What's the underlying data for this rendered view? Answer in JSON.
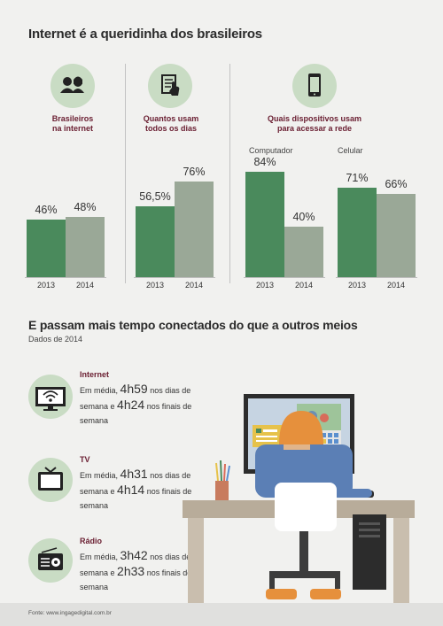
{
  "title": "Internet é a queridinha dos brasileiros",
  "panels": {
    "p1": {
      "label_line1": "Brasileiros",
      "label_line2": "na internet"
    },
    "p2": {
      "label_line1": "Quantos usam",
      "label_line2": "todos os dias"
    },
    "p3": {
      "label_line1": "Quais dispositivos usam",
      "label_line2": "para acessar a rede",
      "group1": "Computador",
      "group2": "Celular"
    }
  },
  "chart_data": [
    {
      "type": "bar",
      "categories": [
        "2013",
        "2014"
      ],
      "values": [
        46,
        48
      ],
      "value_labels": [
        "46%",
        "48%"
      ],
      "ylim": [
        0,
        100
      ],
      "colors": [
        "#4a8a5c",
        "#9aa897"
      ]
    },
    {
      "type": "bar",
      "categories": [
        "2013",
        "2014"
      ],
      "values": [
        56.5,
        76
      ],
      "value_labels": [
        "56,5%",
        "76%"
      ],
      "ylim": [
        0,
        100
      ],
      "colors": [
        "#4a8a5c",
        "#9aa897"
      ]
    },
    {
      "type": "bar",
      "categories": [
        "2013",
        "2014"
      ],
      "values": [
        84,
        40
      ],
      "value_labels": [
        "84%",
        "40%"
      ],
      "ylim": [
        0,
        100
      ],
      "colors": [
        "#4a8a5c",
        "#9aa897"
      ]
    },
    {
      "type": "bar",
      "categories": [
        "2013",
        "2014"
      ],
      "values": [
        71,
        66
      ],
      "value_labels": [
        "71%",
        "66%"
      ],
      "ylim": [
        0,
        100
      ],
      "colors": [
        "#4a8a5c",
        "#9aa897"
      ]
    }
  ],
  "section2": {
    "title": "E passam mais tempo conectados do que a outros meios",
    "subtitle": "Dados de 2014"
  },
  "media": [
    {
      "name": "Internet",
      "prefix": "Em média,",
      "weekday": "4h59",
      "mid": "nos dias de semana e",
      "weekend": "4h24",
      "suffix": "nos finais de semana",
      "icon": "wifi-tv-icon"
    },
    {
      "name": "TV",
      "prefix": "Em média,",
      "weekday": "4h31",
      "mid": "nos dias de semana e",
      "weekend": "4h14",
      "suffix": "nos finais de semana",
      "icon": "tv-icon"
    },
    {
      "name": "Rádio",
      "prefix": "Em média,",
      "weekday": "3h42",
      "mid": "nos dias de semana e",
      "weekend": "2h33",
      "suffix": "nos finais de semana",
      "icon": "radio-icon"
    }
  ],
  "footer": "Fonte: www.ingagedigital.com.br",
  "colors": {
    "bar_2013": "#4a8a5c",
    "bar_2014": "#9aa897",
    "accent": "#6b2033",
    "icon_bg": "#c9dcc4"
  }
}
